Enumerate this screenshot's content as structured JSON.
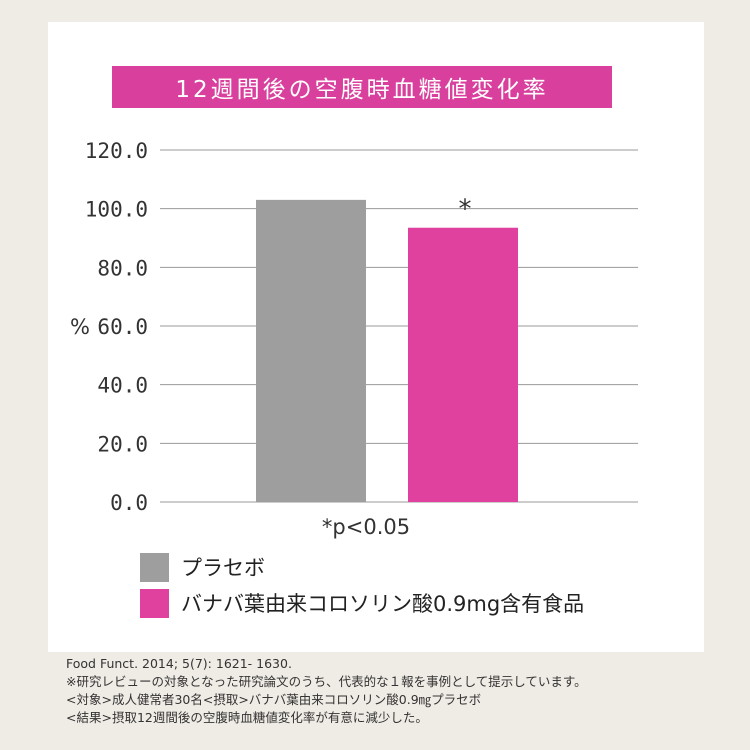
{
  "colors": {
    "background": "#efebe5",
    "panel": "#ffffff",
    "title_band": "#d9409e",
    "placebo": "#9e9e9e",
    "banana": "#e0409e",
    "grid": "#999999"
  },
  "chart_data": {
    "type": "bar",
    "title": "12週間後の空腹時血糖値変化率",
    "ylabel": "%",
    "ylim": [
      0,
      120
    ],
    "yticks": [
      "0.0",
      "20.0",
      "40.0",
      "60.0",
      "80.0",
      "100.0",
      "120.0"
    ],
    "ytick_values": [
      0,
      20,
      40,
      60,
      80,
      100,
      120
    ],
    "grid": true,
    "series": [
      {
        "name": "プラセボ",
        "value": 103,
        "color": "#9e9e9e",
        "annotation": ""
      },
      {
        "name": "バナバ葉由来コロソリン酸0.9mg含有食品",
        "value": 93.5,
        "color": "#e0409e",
        "annotation": "*"
      }
    ],
    "note": "*p<0.05",
    "legend_position": "bottom-left"
  },
  "footer": {
    "lines": [
      "Food Funct. 2014; 5(7): 1621- 1630.",
      "※研究レビューの対象となった研究論文のうち、代表的な１報を事例として提示しています。",
      "<対象>成人健常者30名<摂取>バナバ葉由来コロソリン酸0.9㎎プラセボ",
      "<結果>摂取12週間後の空腹時血糖値変化率が有意に減少した。"
    ]
  }
}
